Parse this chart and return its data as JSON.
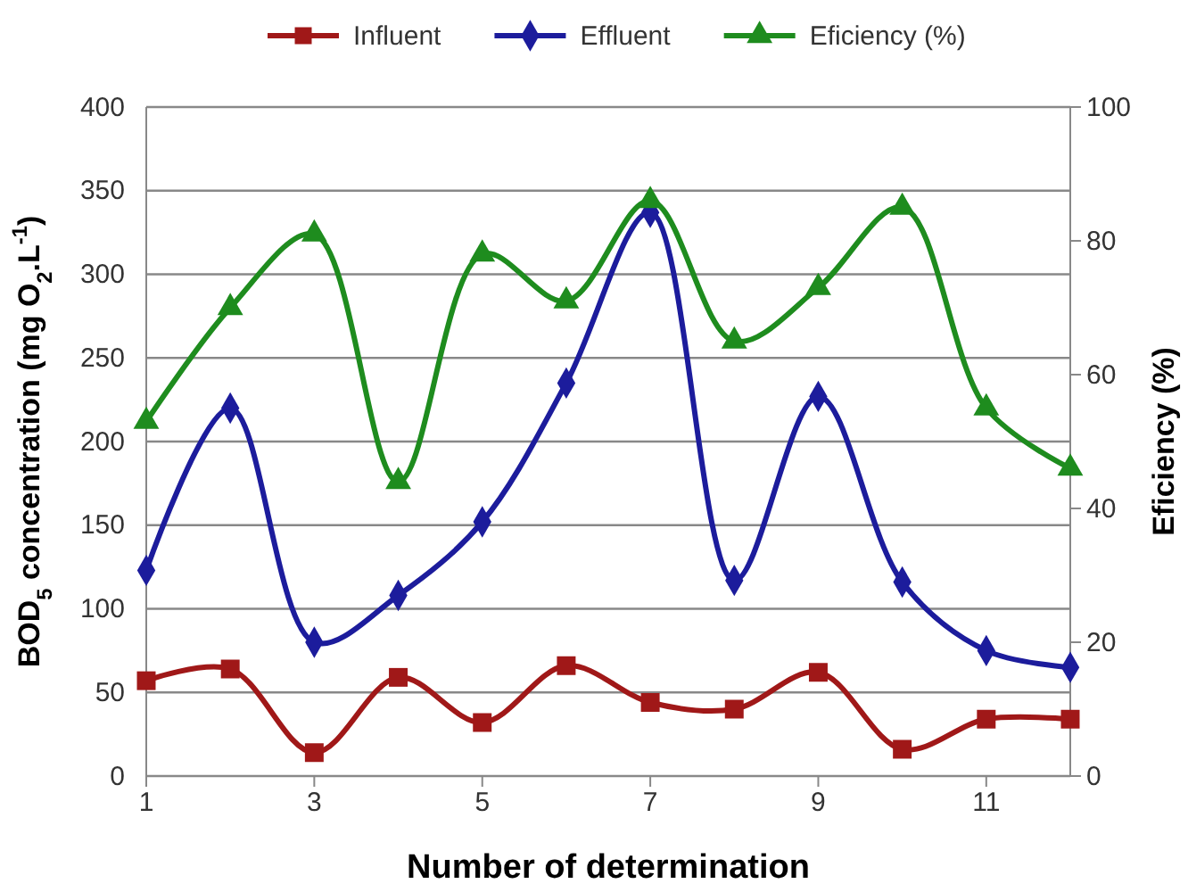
{
  "chart_data": {
    "type": "line",
    "xlabel": "Number of determination",
    "ylabel": "BOD$_{5}$ concentration (mg O$_{2}$.L$^{-1}$)",
    "y2label": "Eficiency (%)",
    "x": [
      1,
      2,
      3,
      4,
      5,
      6,
      7,
      8,
      9,
      10,
      11,
      12
    ],
    "series": [
      {
        "name": "Influent",
        "color": "#a01818",
        "marker": "square",
        "values": [
          57,
          64,
          14,
          59,
          32,
          66,
          44,
          40,
          62,
          16,
          34,
          34
        ]
      },
      {
        "name": "Effluent",
        "color": "#1c1c9c",
        "marker": "diamond",
        "values": [
          123,
          220,
          80,
          108,
          152,
          235,
          337,
          117,
          227,
          116,
          75,
          65
        ]
      },
      {
        "name": "Eficiency (%)",
        "color": "#1e8c1e",
        "marker": "triangle",
        "axis": "y2",
        "values": [
          53,
          70,
          81,
          44,
          78,
          71,
          86,
          65,
          73,
          85,
          55,
          46
        ]
      }
    ],
    "xlim": [
      1,
      12
    ],
    "xticks": [
      1,
      3,
      5,
      7,
      9,
      11
    ],
    "ylim": [
      0,
      400
    ],
    "yticks": [
      0,
      50,
      100,
      150,
      200,
      250,
      300,
      350,
      400
    ],
    "y2lim": [
      0,
      100
    ],
    "y2ticks": [
      0,
      20,
      40,
      60,
      80,
      100
    ],
    "grid": "y",
    "legend": "top"
  }
}
